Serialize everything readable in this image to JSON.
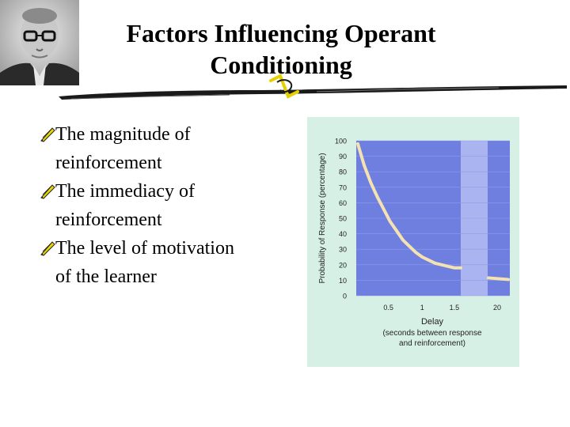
{
  "slide": {
    "title_line1": "Factors Influencing Operant",
    "title_line2": "Conditioning",
    "bullets": [
      {
        "line1": "The magnitude of",
        "line2": "reinforcement"
      },
      {
        "line1": "The immediacy of",
        "line2": "reinforcement"
      },
      {
        "line1": "The level of motivation",
        "line2": "of the learner"
      }
    ],
    "accent_color": "#1a1a1a",
    "bullet_icon": "pencil-icon",
    "portrait_icon": "portrait-photo"
  },
  "chart_data": {
    "type": "line",
    "ylabel": "Probability of Response (percentage)",
    "xlabel": "Delay",
    "xlabel_sub": [
      "(seconds between response",
      "and reinforcement)"
    ],
    "y_ticks": [
      "100",
      "90",
      "80",
      "70",
      "60",
      "50",
      "40",
      "30",
      "20",
      "10",
      "0"
    ],
    "x_ticks": [
      "0.5",
      "1",
      "1.5",
      "20"
    ],
    "ylim": [
      0,
      100
    ],
    "series": [
      {
        "x": [
          0,
          0.1,
          0.2,
          0.3,
          0.4,
          0.5,
          0.6,
          0.7,
          0.8,
          0.9,
          1.0,
          1.1,
          1.2,
          1.3,
          1.4,
          1.5,
          1.6
        ],
        "y": [
          98,
          84,
          73,
          64,
          56,
          48,
          42,
          36,
          32,
          28,
          25,
          23,
          21,
          20,
          19,
          18,
          18
        ],
        "break_values": [
          {
            "x": 20,
            "y": 11
          }
        ]
      }
    ],
    "colors": {
      "plot_bg": "#6e7fe0",
      "break_band": "#a9b4f0",
      "frame_bg": "#d7f0e6",
      "line": "#f4e3b0"
    }
  }
}
